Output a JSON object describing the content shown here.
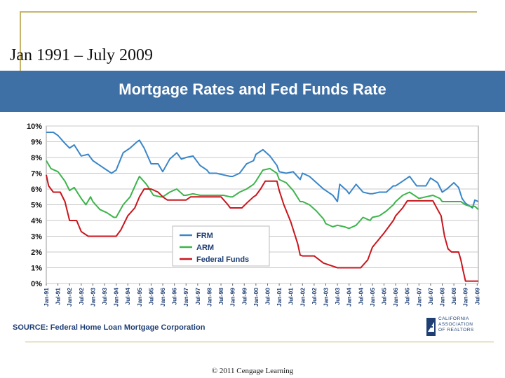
{
  "slide": {
    "title": "Jan 1991 – July 2009",
    "chart_banner": "Mortgage Rates and Fed Funds Rate",
    "source": "SOURCE: Federal Home Loan Mortgage Corporation",
    "logo_lines": [
      "CALIFORNIA",
      "ASSOCIATION",
      "OF REALTORS"
    ],
    "footer": "© 2011 Cengage Learning"
  },
  "colors": {
    "banner": "#3e6fa5",
    "frm": "#3a86c8",
    "arm": "#3cb44b",
    "fed": "#c8161d",
    "grid": "#c8c8c8",
    "accent_rule": "#c9b56a"
  },
  "chart_data": {
    "type": "line",
    "title": "Mortgage Rates and Fed Funds Rate",
    "xlabel": "",
    "ylabel": "",
    "ylim": [
      0,
      10
    ],
    "grid": true,
    "legend_position": "center",
    "y_ticks": [
      "0%",
      "1%",
      "2%",
      "3%",
      "4%",
      "5%",
      "6%",
      "7%",
      "8%",
      "9%",
      "10%"
    ],
    "x_ticks": [
      "Jan-91",
      "Jul-91",
      "Jan-92",
      "Jul-92",
      "Jan-93",
      "Jul-93",
      "Jan-94",
      "Jul-94",
      "Jan-95",
      "Jul-95",
      "Jan-96",
      "Jul-96",
      "Jan-97",
      "Jul-97",
      "Jan-98",
      "Jul-98",
      "Jan-99",
      "Jul-99",
      "Jan-00",
      "Jul-00",
      "Jan-01",
      "Jul-01",
      "Jan-02",
      "Jul-02",
      "Jan-03",
      "Jul-03",
      "Jan-04",
      "Jul-04",
      "Jan-05",
      "Jul-05",
      "Jan-06",
      "Jul-06",
      "Jan-07",
      "Jul-07",
      "Jan-08",
      "Jul-08",
      "Jan-09",
      "Jul-09"
    ],
    "x_start_year": 1991.0,
    "x_end_year": 2009.55,
    "series": [
      {
        "name": "FRM",
        "color": "#3a86c8",
        "points": [
          [
            1991.0,
            9.6
          ],
          [
            1991.3,
            9.6
          ],
          [
            1991.5,
            9.4
          ],
          [
            1991.8,
            8.9
          ],
          [
            1992.0,
            8.6
          ],
          [
            1992.2,
            8.8
          ],
          [
            1992.5,
            8.1
          ],
          [
            1992.8,
            8.2
          ],
          [
            1993.0,
            7.8
          ],
          [
            1993.3,
            7.5
          ],
          [
            1993.6,
            7.2
          ],
          [
            1993.8,
            7.0
          ],
          [
            1994.0,
            7.2
          ],
          [
            1994.3,
            8.3
          ],
          [
            1994.6,
            8.6
          ],
          [
            1994.9,
            9.0
          ],
          [
            1995.0,
            9.1
          ],
          [
            1995.2,
            8.6
          ],
          [
            1995.5,
            7.6
          ],
          [
            1995.8,
            7.6
          ],
          [
            1996.0,
            7.1
          ],
          [
            1996.3,
            7.9
          ],
          [
            1996.6,
            8.3
          ],
          [
            1996.8,
            7.9
          ],
          [
            1997.0,
            8.0
          ],
          [
            1997.3,
            8.1
          ],
          [
            1997.6,
            7.5
          ],
          [
            1997.9,
            7.2
          ],
          [
            1998.0,
            7.0
          ],
          [
            1998.3,
            7.0
          ],
          [
            1998.6,
            6.9
          ],
          [
            1998.9,
            6.8
          ],
          [
            1999.0,
            6.8
          ],
          [
            1999.3,
            7.0
          ],
          [
            1999.6,
            7.6
          ],
          [
            1999.9,
            7.8
          ],
          [
            2000.0,
            8.2
          ],
          [
            2000.3,
            8.5
          ],
          [
            2000.6,
            8.1
          ],
          [
            2000.9,
            7.5
          ],
          [
            2001.0,
            7.1
          ],
          [
            2001.3,
            7.0
          ],
          [
            2001.6,
            7.1
          ],
          [
            2001.9,
            6.6
          ],
          [
            2002.0,
            7.0
          ],
          [
            2002.3,
            6.8
          ],
          [
            2002.6,
            6.4
          ],
          [
            2002.9,
            6.0
          ],
          [
            2003.0,
            5.9
          ],
          [
            2003.3,
            5.6
          ],
          [
            2003.5,
            5.2
          ],
          [
            2003.6,
            6.3
          ],
          [
            2003.9,
            5.9
          ],
          [
            2004.0,
            5.7
          ],
          [
            2004.3,
            6.3
          ],
          [
            2004.6,
            5.8
          ],
          [
            2004.9,
            5.7
          ],
          [
            2005.0,
            5.7
          ],
          [
            2005.3,
            5.8
          ],
          [
            2005.6,
            5.8
          ],
          [
            2005.9,
            6.2
          ],
          [
            2006.0,
            6.2
          ],
          [
            2006.3,
            6.5
          ],
          [
            2006.6,
            6.8
          ],
          [
            2006.9,
            6.2
          ],
          [
            2007.0,
            6.2
          ],
          [
            2007.3,
            6.2
          ],
          [
            2007.5,
            6.7
          ],
          [
            2007.8,
            6.4
          ],
          [
            2008.0,
            5.8
          ],
          [
            2008.2,
            6.0
          ],
          [
            2008.5,
            6.4
          ],
          [
            2008.7,
            6.1
          ],
          [
            2008.85,
            5.4
          ],
          [
            2009.0,
            5.1
          ],
          [
            2009.2,
            4.9
          ],
          [
            2009.3,
            4.8
          ],
          [
            2009.4,
            5.3
          ],
          [
            2009.55,
            5.2
          ]
        ]
      },
      {
        "name": "ARM",
        "color": "#3cb44b",
        "points": [
          [
            1991.0,
            7.8
          ],
          [
            1991.2,
            7.3
          ],
          [
            1991.5,
            7.1
          ],
          [
            1991.8,
            6.5
          ],
          [
            1992.0,
            5.9
          ],
          [
            1992.2,
            6.1
          ],
          [
            1992.5,
            5.4
          ],
          [
            1992.7,
            5.0
          ],
          [
            1992.9,
            5.5
          ],
          [
            1993.0,
            5.2
          ],
          [
            1993.3,
            4.7
          ],
          [
            1993.6,
            4.5
          ],
          [
            1993.9,
            4.2
          ],
          [
            1994.0,
            4.2
          ],
          [
            1994.3,
            5.0
          ],
          [
            1994.6,
            5.5
          ],
          [
            1994.9,
            6.5
          ],
          [
            1995.0,
            6.8
          ],
          [
            1995.3,
            6.3
          ],
          [
            1995.6,
            5.6
          ],
          [
            1995.9,
            5.5
          ],
          [
            1996.0,
            5.5
          ],
          [
            1996.3,
            5.8
          ],
          [
            1996.6,
            6.0
          ],
          [
            1996.9,
            5.6
          ],
          [
            1997.0,
            5.6
          ],
          [
            1997.3,
            5.7
          ],
          [
            1997.6,
            5.6
          ],
          [
            1997.9,
            5.6
          ],
          [
            1998.0,
            5.6
          ],
          [
            1998.3,
            5.6
          ],
          [
            1998.6,
            5.6
          ],
          [
            1998.9,
            5.5
          ],
          [
            1999.0,
            5.5
          ],
          [
            1999.3,
            5.8
          ],
          [
            1999.6,
            6.0
          ],
          [
            1999.9,
            6.3
          ],
          [
            2000.0,
            6.5
          ],
          [
            2000.3,
            7.2
          ],
          [
            2000.6,
            7.3
          ],
          [
            2000.9,
            7.0
          ],
          [
            2001.0,
            6.6
          ],
          [
            2001.3,
            6.4
          ],
          [
            2001.6,
            5.9
          ],
          [
            2001.9,
            5.2
          ],
          [
            2002.0,
            5.2
          ],
          [
            2002.3,
            5.0
          ],
          [
            2002.6,
            4.6
          ],
          [
            2002.9,
            4.1
          ],
          [
            2003.0,
            3.8
          ],
          [
            2003.3,
            3.6
          ],
          [
            2003.5,
            3.7
          ],
          [
            2003.8,
            3.6
          ],
          [
            2004.0,
            3.5
          ],
          [
            2004.3,
            3.7
          ],
          [
            2004.6,
            4.2
          ],
          [
            2004.9,
            4.0
          ],
          [
            2005.0,
            4.2
          ],
          [
            2005.3,
            4.3
          ],
          [
            2005.6,
            4.6
          ],
          [
            2005.9,
            5.0
          ],
          [
            2006.0,
            5.2
          ],
          [
            2006.3,
            5.6
          ],
          [
            2006.6,
            5.8
          ],
          [
            2006.9,
            5.5
          ],
          [
            2007.0,
            5.4
          ],
          [
            2007.3,
            5.5
          ],
          [
            2007.6,
            5.6
          ],
          [
            2007.9,
            5.4
          ],
          [
            2008.0,
            5.2
          ],
          [
            2008.3,
            5.2
          ],
          [
            2008.6,
            5.2
          ],
          [
            2008.8,
            5.2
          ],
          [
            2009.0,
            5.0
          ],
          [
            2009.2,
            4.9
          ],
          [
            2009.4,
            4.9
          ],
          [
            2009.55,
            4.7
          ]
        ]
      },
      {
        "name": "Federal Funds",
        "color": "#c8161d",
        "points": [
          [
            1991.0,
            6.9
          ],
          [
            1991.1,
            6.2
          ],
          [
            1991.3,
            5.8
          ],
          [
            1991.6,
            5.8
          ],
          [
            1991.8,
            5.2
          ],
          [
            1992.0,
            4.0
          ],
          [
            1992.3,
            4.0
          ],
          [
            1992.5,
            3.3
          ],
          [
            1992.8,
            3.0
          ],
          [
            1993.0,
            3.0
          ],
          [
            1993.5,
            3.0
          ],
          [
            1994.0,
            3.0
          ],
          [
            1994.2,
            3.4
          ],
          [
            1994.5,
            4.3
          ],
          [
            1994.8,
            4.8
          ],
          [
            1995.0,
            5.5
          ],
          [
            1995.2,
            6.0
          ],
          [
            1995.5,
            6.0
          ],
          [
            1995.8,
            5.8
          ],
          [
            1996.0,
            5.5
          ],
          [
            1996.2,
            5.3
          ],
          [
            1996.6,
            5.3
          ],
          [
            1997.0,
            5.3
          ],
          [
            1997.2,
            5.5
          ],
          [
            1997.6,
            5.5
          ],
          [
            1998.0,
            5.5
          ],
          [
            1998.5,
            5.5
          ],
          [
            1998.8,
            5.0
          ],
          [
            1998.9,
            4.8
          ],
          [
            1999.0,
            4.8
          ],
          [
            1999.4,
            4.8
          ],
          [
            1999.6,
            5.1
          ],
          [
            1999.9,
            5.5
          ],
          [
            2000.0,
            5.6
          ],
          [
            2000.2,
            6.0
          ],
          [
            2000.4,
            6.5
          ],
          [
            2000.9,
            6.5
          ],
          [
            2001.0,
            5.9
          ],
          [
            2001.2,
            5.0
          ],
          [
            2001.5,
            3.9
          ],
          [
            2001.8,
            2.5
          ],
          [
            2001.9,
            1.8
          ],
          [
            2002.0,
            1.75
          ],
          [
            2002.5,
            1.75
          ],
          [
            2002.9,
            1.3
          ],
          [
            2003.0,
            1.25
          ],
          [
            2003.5,
            1.0
          ],
          [
            2004.0,
            1.0
          ],
          [
            2004.5,
            1.0
          ],
          [
            2004.8,
            1.5
          ],
          [
            2005.0,
            2.3
          ],
          [
            2005.5,
            3.2
          ],
          [
            2005.9,
            4.0
          ],
          [
            2006.0,
            4.3
          ],
          [
            2006.3,
            4.8
          ],
          [
            2006.5,
            5.25
          ],
          [
            2007.0,
            5.25
          ],
          [
            2007.6,
            5.25
          ],
          [
            2007.8,
            4.7
          ],
          [
            2007.95,
            4.3
          ],
          [
            2008.1,
            3.0
          ],
          [
            2008.25,
            2.2
          ],
          [
            2008.4,
            2.0
          ],
          [
            2008.7,
            2.0
          ],
          [
            2008.8,
            1.5
          ],
          [
            2008.9,
            0.8
          ],
          [
            2009.0,
            0.15
          ],
          [
            2009.55,
            0.15
          ]
        ]
      }
    ]
  }
}
